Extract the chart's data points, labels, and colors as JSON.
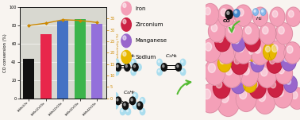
{
  "bar_categories": [
    "FeMn/20a",
    "FeMn1Zr/20a",
    "FeMn2Zr/20a",
    "FeMn3Zr/20a",
    "FeMn4Zr/20a"
  ],
  "co_conversion": [
    43,
    70,
    85,
    87,
    82
  ],
  "selectivity": [
    32.0,
    33.0,
    34.5,
    34.2,
    33.3
  ],
  "bar_colors": [
    "#111111",
    "#e8274b",
    "#4472c4",
    "#3cb44b",
    "#9370db"
  ],
  "bar_hatch": [
    "",
    "",
    "..",
    "",
    ""
  ],
  "line_color": "#cc8800",
  "ylabel_left": "CO conversion (%)",
  "ylabel_right": "C2°-C4° selectivity (%)",
  "ylim_left": [
    0,
    100
  ],
  "ylim_right": [
    0,
    40
  ],
  "yticks_left": [
    0,
    20,
    40,
    60,
    80,
    100
  ],
  "yticks_right": [
    0,
    5,
    10,
    15,
    20,
    25,
    30,
    35
  ],
  "legend_items": [
    {
      "label": "Iron",
      "color": "#f4a0b8"
    },
    {
      "label": "Zirconium",
      "color": "#cc2244"
    },
    {
      "label": "Manganese",
      "color": "#9966cc"
    },
    {
      "label": "Sodium",
      "color": "#e8b800"
    }
  ],
  "plot_bg": "#d8d8d0",
  "fig_bg": "#f8f4f0",
  "iron_color": "#f4a0b8",
  "zr_color": "#cc2244",
  "mn_color": "#9966cc",
  "na_color": "#e8b800",
  "co_black": "#111111",
  "co_blue": "#4488cc",
  "h2_blue": "#88bbee",
  "arrow_green": "#55bb33",
  "mol_carbon": "#111111",
  "mol_h": "#aaddee"
}
